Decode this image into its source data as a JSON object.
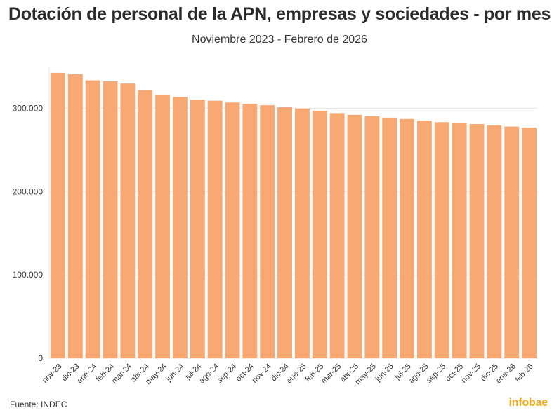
{
  "chart_data": {
    "type": "bar",
    "title": "Dotación de personal de la APN, empresas y sociedades - por mes",
    "subtitle": "Noviembre 2023 - Febrero de 2026",
    "categories": [
      "nov-23",
      "dic-23",
      "ene-24",
      "feb-24",
      "mar-24",
      "abr-24",
      "may-24",
      "jun-24",
      "jul-24",
      "ago-24",
      "sep-24",
      "oct-24",
      "nov-24",
      "dic-24",
      "ene-25",
      "feb-25",
      "mar-25",
      "abr-25",
      "may-25",
      "jun-25",
      "jul-25",
      "ago-25",
      "sep-25",
      "oct-25",
      "nov-25",
      "dic-25",
      "ene-26",
      "feb-26"
    ],
    "values": [
      342500,
      340800,
      333500,
      332300,
      329700,
      321900,
      315800,
      313500,
      310200,
      309100,
      306900,
      305200,
      303600,
      301200,
      299600,
      297000,
      294200,
      292100,
      290400,
      288700,
      287100,
      285200,
      283300,
      282000,
      281000,
      279500,
      278000,
      276700
    ],
    "ylim": [
      0,
      350000
    ],
    "yticks": [
      0,
      100000,
      200000,
      300000
    ],
    "ytick_labels": [
      "0",
      "100.000",
      "200.000",
      "300.000"
    ],
    "xlabel": "",
    "ylabel": "",
    "grid": true,
    "bar_color": "#f7a873"
  },
  "footer": {
    "source": "Fuente: INDEC",
    "logo": "infobae"
  }
}
